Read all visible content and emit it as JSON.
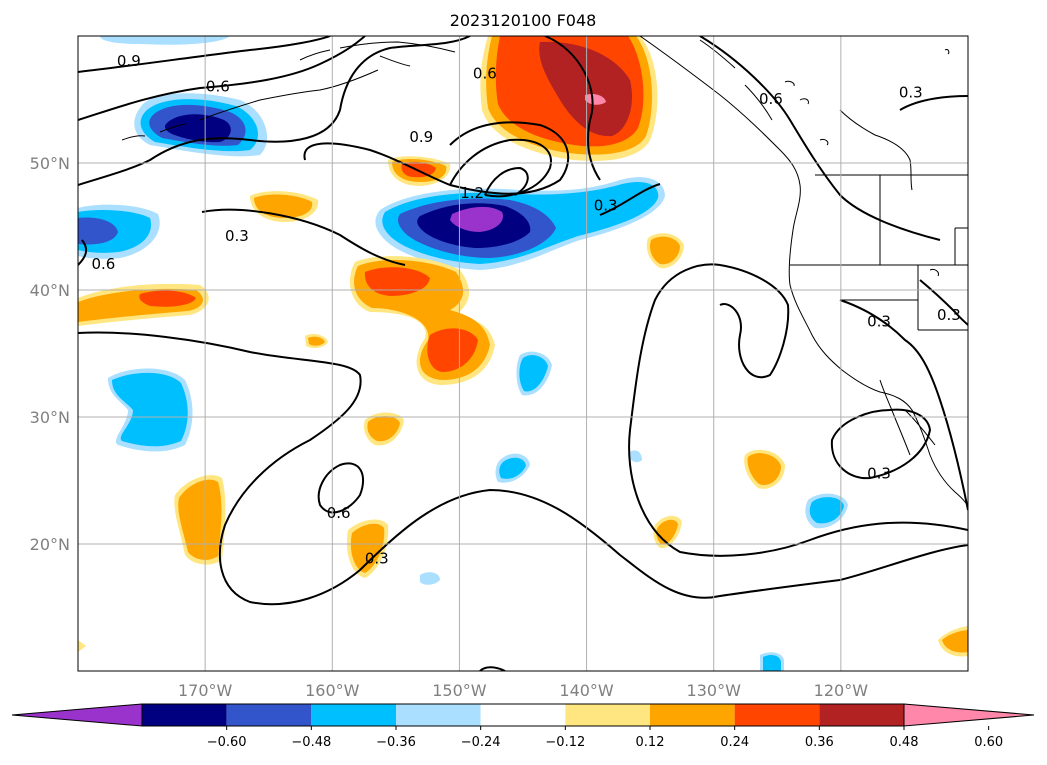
{
  "title": "2023120100 F048",
  "map": {
    "lon_range": [
      -180,
      -110
    ],
    "lat_range": [
      10,
      60
    ],
    "lat_gridlines": [
      20,
      30,
      40,
      50
    ],
    "lon_gridlines": [
      -170,
      -160,
      -150,
      -140,
      -130,
      -120
    ],
    "lat_labels": [
      "20°N",
      "30°N",
      "40°N",
      "50°N"
    ],
    "lon_labels": [
      "170°W",
      "160°W",
      "150°W",
      "140°W",
      "130°W",
      "120°W"
    ],
    "grid": true,
    "contour_labels": [
      {
        "text": "0.9",
        "lon": -176.0,
        "lat": 58.0
      },
      {
        "text": "0.6",
        "lon": -169.0,
        "lat": 56.0
      },
      {
        "text": "0.6",
        "lon": -178.0,
        "lat": 42.0
      },
      {
        "text": "0.3",
        "lon": -167.5,
        "lat": 44.2
      },
      {
        "text": "0.9",
        "lon": -153.0,
        "lat": 52.0
      },
      {
        "text": "0.6",
        "lon": -148.0,
        "lat": 57.0
      },
      {
        "text": "1.2",
        "lon": -149.0,
        "lat": 47.6
      },
      {
        "text": "0.3",
        "lon": -138.5,
        "lat": 46.6
      },
      {
        "text": "0.6",
        "lon": -125.5,
        "lat": 55.0
      },
      {
        "text": "0.3",
        "lon": -114.5,
        "lat": 55.5
      },
      {
        "text": "0.3",
        "lon": -117.0,
        "lat": 37.5
      },
      {
        "text": "0.3",
        "lon": -111.5,
        "lat": 38.0
      },
      {
        "text": "0.3",
        "lon": -117.0,
        "lat": 25.5
      },
      {
        "text": "0.6",
        "lon": -159.5,
        "lat": 22.4
      },
      {
        "text": "0.3",
        "lon": -156.5,
        "lat": 18.8
      }
    ]
  },
  "colorbar": {
    "ticks": [
      "−0.60",
      "−0.48",
      "−0.36",
      "−0.24",
      "−0.12",
      "0.12",
      "0.24",
      "0.36",
      "0.48",
      "0.60"
    ],
    "colors": [
      "#9933cc",
      "#000080",
      "#3355cc",
      "#00bfff",
      "#aadfff",
      "#ffffff",
      "#ffe680",
      "#ffa500",
      "#ff4500",
      "#b22222",
      "#ff88aa"
    ],
    "extend": "both"
  }
}
